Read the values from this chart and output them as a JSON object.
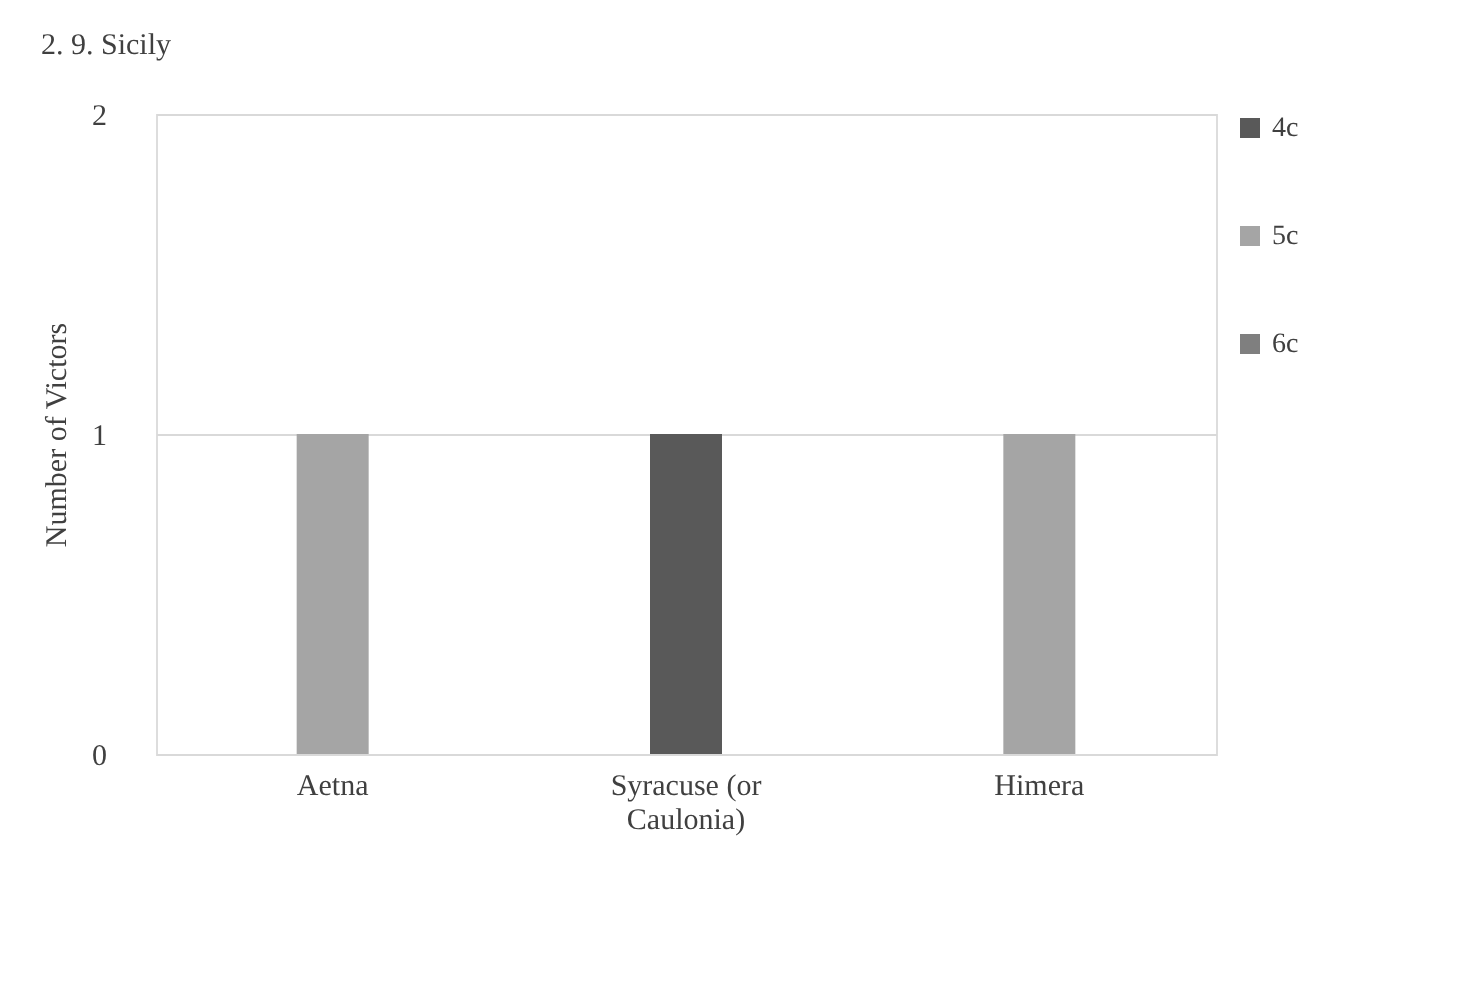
{
  "chart_data": {
    "type": "bar",
    "title": "2. 9. Sicily",
    "ylabel": "Number of Victors",
    "categories": [
      "Aetna",
      "Syracuse (or Caulonia)",
      "Himera"
    ],
    "series": [
      {
        "name": "4c",
        "color": "#595959",
        "values": [
          null,
          1,
          null
        ]
      },
      {
        "name": "5c",
        "color": "#a5a5a5",
        "values": [
          1,
          null,
          1
        ]
      },
      {
        "name": "6c",
        "color": "#7f7f7f",
        "values": [
          null,
          null,
          null
        ]
      }
    ],
    "ylim": [
      0,
      2
    ],
    "yticks": [
      0,
      1,
      2
    ],
    "grid": "y",
    "legend": "right"
  }
}
